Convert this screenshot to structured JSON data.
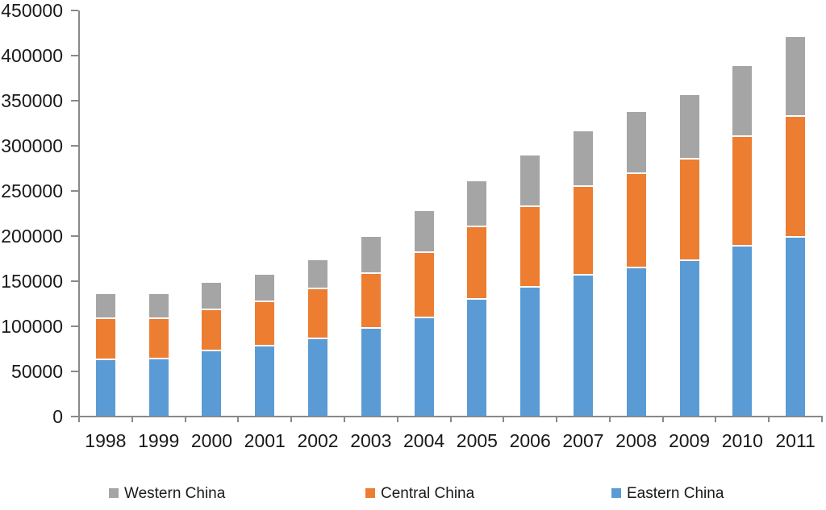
{
  "chart_data": {
    "type": "bar",
    "stacked": true,
    "categories": [
      "1998",
      "1999",
      "2000",
      "2001",
      "2002",
      "2003",
      "2004",
      "2005",
      "2006",
      "2007",
      "2008",
      "2009",
      "2010",
      "2011"
    ],
    "series": [
      {
        "name": "Eastern China",
        "color": "#5B9BD5",
        "values": [
          63000,
          64000,
          73000,
          79000,
          87000,
          98000,
          110000,
          130000,
          144000,
          157000,
          165000,
          173000,
          189000,
          199000
        ]
      },
      {
        "name": "Central China",
        "color": "#ED7D31",
        "values": [
          46000,
          45000,
          46000,
          49000,
          55000,
          61000,
          72000,
          81000,
          89000,
          98000,
          105000,
          113000,
          122000,
          134000
        ]
      },
      {
        "name": "Western China",
        "color": "#A5A5A5",
        "values": [
          28000,
          28000,
          30000,
          30000,
          32000,
          41000,
          47000,
          51000,
          57000,
          62000,
          68000,
          71000,
          78000,
          88000
        ]
      }
    ],
    "title": "",
    "xlabel": "",
    "ylabel": "",
    "y_axis": {
      "min": 0,
      "max": 450000,
      "step": 50000,
      "tick_labels": [
        "0",
        "50000",
        "100000",
        "150000",
        "200000",
        "250000",
        "300000",
        "350000",
        "400000",
        "450000"
      ]
    },
    "legend": {
      "position": "bottom",
      "order": [
        "Western China",
        "Central China",
        "Eastern China"
      ]
    },
    "grid": false,
    "colors": {
      "axis_line": "#898989",
      "text": "#1a1a1a",
      "background": "#ffffff"
    }
  }
}
